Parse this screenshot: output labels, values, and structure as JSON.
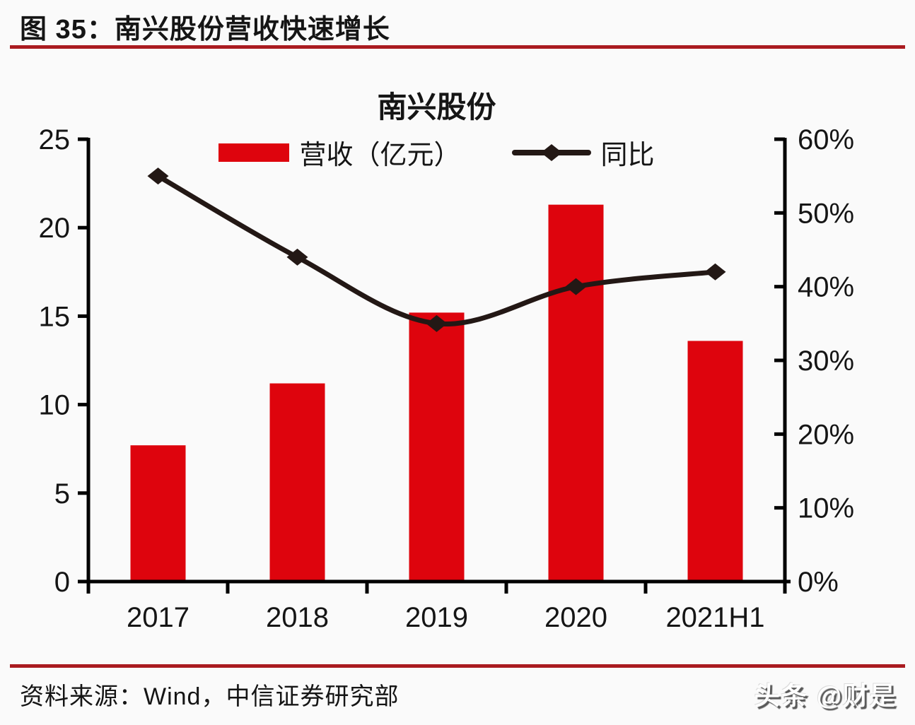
{
  "figure": {
    "caption": "图 35：南兴股份营收快速增长",
    "source": "资料来源：Wind，中信证券研究部",
    "watermark": "头条 @财是"
  },
  "colors": {
    "accent_red": "#de040d",
    "rule_red": "#aa1b20",
    "line_dark": "#231815",
    "axis_black": "#000000",
    "text": "#151515",
    "background": "#fafafa"
  },
  "chart_data": {
    "type": "bar+line",
    "title": "南兴股份",
    "categories": [
      "2017",
      "2018",
      "2019",
      "2020",
      "2021H1"
    ],
    "series": [
      {
        "name": "营收（亿元）",
        "type": "bar",
        "axis": "left",
        "color": "#de040d",
        "values": [
          7.7,
          11.2,
          15.2,
          21.3,
          13.6
        ]
      },
      {
        "name": "同比",
        "type": "line",
        "axis": "right",
        "color": "#231815",
        "marker": "diamond",
        "values": [
          55,
          44,
          35,
          40,
          42
        ],
        "unit": "%"
      }
    ],
    "left_axis": {
      "min": 0,
      "max": 25,
      "step": 5,
      "ticks": [
        "0",
        "5",
        "10",
        "15",
        "20",
        "25"
      ]
    },
    "right_axis": {
      "min": 0,
      "max": 60,
      "step": 10,
      "ticks": [
        "0%",
        "10%",
        "20%",
        "30%",
        "40%",
        "50%",
        "60%"
      ]
    },
    "grid": false,
    "legend_position": "top"
  }
}
